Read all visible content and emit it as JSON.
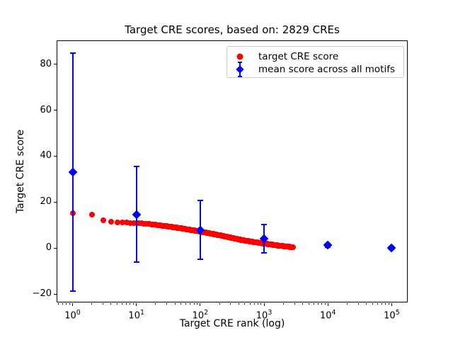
{
  "figure": {
    "title": "Target CRE scores, based on: 2829 CREs",
    "xlabel": "Target CRE rank (log)",
    "ylabel": "Target CRE score",
    "background_color": "#ffffff",
    "frame_color": "#000000"
  },
  "legend": {
    "entries": [
      {
        "label": "target CRE score",
        "marker": "circle",
        "color": "#ff0000"
      },
      {
        "label": "mean score across all motifs",
        "marker": "diamond-errorbar",
        "color": "#0000ff"
      }
    ]
  },
  "chart_data": {
    "type": "scatter",
    "title": "Target CRE scores, based on: 2829 CREs",
    "xlabel": "Target CRE rank (log)",
    "ylabel": "Target CRE score",
    "x_scale": "log10",
    "xlim_log10": [
      -0.25,
      5.25
    ],
    "ylim": [
      -23.8,
      90.2
    ],
    "xtick_base": "10",
    "xtick_exponents": [
      0,
      1,
      2,
      3,
      4,
      5
    ],
    "yticks": [
      -20,
      0,
      20,
      40,
      60,
      80
    ],
    "grid": false,
    "legend_position": "upper right",
    "n_target_cres": 2829,
    "series": [
      {
        "name": "target CRE score",
        "marker": "circle",
        "color": "#ff0000",
        "n_points": 2829,
        "comment": "scores for ranks 1..2829; anchor_points are [rank, score] read off the plot, intermediate ranks interpolated linearly in log10(rank)",
        "anchor_points": [
          [
            1,
            15.2
          ],
          [
            2,
            14.6
          ],
          [
            3,
            12.2
          ],
          [
            4,
            11.5
          ],
          [
            5,
            11.2
          ],
          [
            6,
            11.3
          ],
          [
            8,
            11.0
          ],
          [
            10,
            10.9
          ],
          [
            14,
            10.6
          ],
          [
            20,
            10.1
          ],
          [
            32,
            9.4
          ],
          [
            50,
            8.6
          ],
          [
            79,
            7.7
          ],
          [
            100,
            7.2
          ],
          [
            141,
            6.4
          ],
          [
            200,
            5.6
          ],
          [
            282,
            4.7
          ],
          [
            398,
            3.8
          ],
          [
            631,
            2.8
          ],
          [
            1000,
            2.0
          ],
          [
            1585,
            1.2
          ],
          [
            2239,
            0.7
          ],
          [
            2829,
            0.35
          ]
        ]
      },
      {
        "name": "mean score across all motifs",
        "marker": "diamond",
        "color": "#0000ff",
        "error_bars": true,
        "points": [
          {
            "rank": 1,
            "mean": 33.1,
            "err": 51.7
          },
          {
            "rank": 10,
            "mean": 14.6,
            "err": 20.8
          },
          {
            "rank": 100,
            "mean": 7.9,
            "err": 12.7
          },
          {
            "rank": 1000,
            "mean": 4.0,
            "err": 6.2
          },
          {
            "rank": 10000,
            "mean": 1.2,
            "err": 0.8
          },
          {
            "rank": 100000,
            "mean": 0.05,
            "err": 0.5
          }
        ]
      }
    ]
  }
}
